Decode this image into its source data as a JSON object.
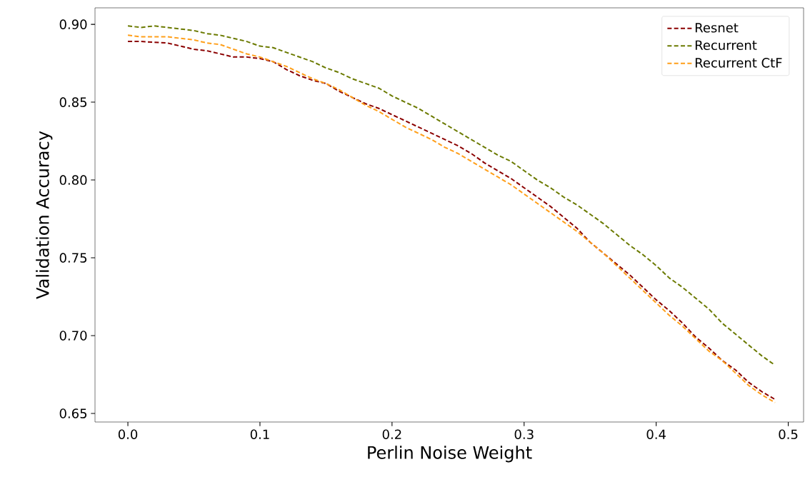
{
  "chart_data": {
    "type": "line",
    "xlabel": "Perlin Noise Weight",
    "ylabel": "Validation Accuracy",
    "x": [
      0.0,
      0.01,
      0.02,
      0.03,
      0.04,
      0.05,
      0.06,
      0.07,
      0.08,
      0.09,
      0.1,
      0.11,
      0.12,
      0.13,
      0.14,
      0.15,
      0.16,
      0.17,
      0.18,
      0.19,
      0.2,
      0.21,
      0.22,
      0.23,
      0.24,
      0.25,
      0.26,
      0.27,
      0.28,
      0.29,
      0.3,
      0.31,
      0.32,
      0.33,
      0.34,
      0.35,
      0.36,
      0.37,
      0.38,
      0.39,
      0.4,
      0.41,
      0.42,
      0.43,
      0.44,
      0.45,
      0.46,
      0.47,
      0.48,
      0.49
    ],
    "series": [
      {
        "name": "Resnet",
        "color": "#8b0000",
        "values": [
          0.889,
          0.889,
          0.8885,
          0.888,
          0.886,
          0.884,
          0.883,
          0.881,
          0.879,
          0.879,
          0.878,
          0.876,
          0.871,
          0.867,
          0.864,
          0.862,
          0.857,
          0.853,
          0.849,
          0.846,
          0.842,
          0.838,
          0.834,
          0.83,
          0.826,
          0.822,
          0.817,
          0.811,
          0.806,
          0.801,
          0.795,
          0.789,
          0.783,
          0.776,
          0.769,
          0.76,
          0.753,
          0.746,
          0.739,
          0.731,
          0.723,
          0.716,
          0.708,
          0.699,
          0.692,
          0.684,
          0.678,
          0.67,
          0.664,
          0.659
        ]
      },
      {
        "name": "Recurrent",
        "color": "#6b7a00",
        "values": [
          0.899,
          0.898,
          0.899,
          0.898,
          0.897,
          0.896,
          0.894,
          0.893,
          0.891,
          0.889,
          0.886,
          0.885,
          0.882,
          0.879,
          0.876,
          0.872,
          0.869,
          0.865,
          0.862,
          0.859,
          0.854,
          0.85,
          0.846,
          0.841,
          0.836,
          0.831,
          0.826,
          0.821,
          0.816,
          0.812,
          0.806,
          0.8,
          0.795,
          0.789,
          0.784,
          0.778,
          0.772,
          0.765,
          0.758,
          0.752,
          0.745,
          0.737,
          0.731,
          0.724,
          0.717,
          0.708,
          0.701,
          0.694,
          0.687,
          0.681
        ]
      },
      {
        "name": "Recurrent CtF",
        "color": "#ff9f1a",
        "values": [
          0.893,
          0.892,
          0.892,
          0.892,
          0.891,
          0.89,
          0.888,
          0.887,
          0.884,
          0.881,
          0.879,
          0.876,
          0.873,
          0.869,
          0.865,
          0.862,
          0.858,
          0.853,
          0.848,
          0.844,
          0.839,
          0.834,
          0.83,
          0.826,
          0.821,
          0.817,
          0.812,
          0.807,
          0.802,
          0.797,
          0.791,
          0.785,
          0.779,
          0.773,
          0.767,
          0.76,
          0.753,
          0.745,
          0.737,
          0.729,
          0.721,
          0.713,
          0.706,
          0.698,
          0.69,
          0.684,
          0.676,
          0.668,
          0.662,
          0.657
        ]
      }
    ],
    "xlim": [
      -0.0249,
      0.5116
    ],
    "ylim": [
      0.6445,
      0.9106
    ],
    "xticks": [
      {
        "value": 0.0,
        "label": "0.0"
      },
      {
        "value": 0.1,
        "label": "0.1"
      },
      {
        "value": 0.2,
        "label": "0.2"
      },
      {
        "value": 0.3,
        "label": "0.3"
      },
      {
        "value": 0.4,
        "label": "0.4"
      },
      {
        "value": 0.5,
        "label": "0.5"
      }
    ],
    "yticks": [
      {
        "value": 0.65,
        "label": "0.65"
      },
      {
        "value": 0.7,
        "label": "0.70"
      },
      {
        "value": 0.75,
        "label": "0.75"
      },
      {
        "value": 0.8,
        "label": "0.80"
      },
      {
        "value": 0.85,
        "label": "0.85"
      },
      {
        "value": 0.9,
        "label": "0.90"
      }
    ],
    "legend": "top right",
    "line_style": "dashed",
    "grid": false
  }
}
